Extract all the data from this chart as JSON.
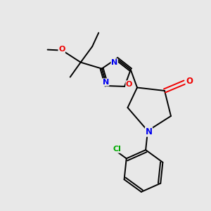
{
  "background_color": "#e8e8e8",
  "bond_color": "#000000",
  "atom_colors": {
    "N": "#0000ee",
    "O": "#ee0000",
    "Cl": "#00aa00",
    "C": "#000000"
  },
  "figsize": [
    3.0,
    3.0
  ],
  "dpi": 100,
  "lw": 1.4
}
